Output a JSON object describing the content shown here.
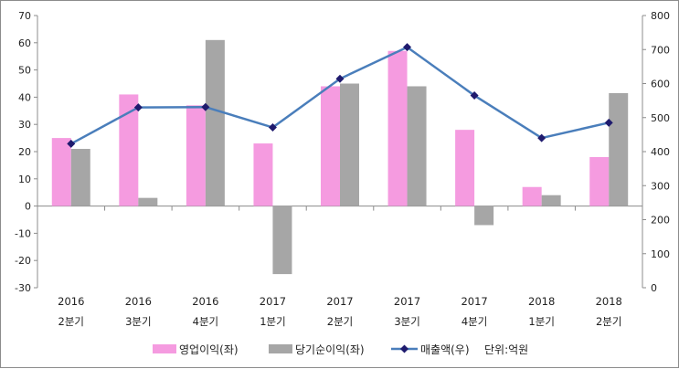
{
  "chart_data": {
    "type": "bar",
    "categories": [
      {
        "year": "2016",
        "quarter": "2분기"
      },
      {
        "year": "2016",
        "quarter": "3분기"
      },
      {
        "year": "2016",
        "quarter": "4분기"
      },
      {
        "year": "2017",
        "quarter": "1분기"
      },
      {
        "year": "2017",
        "quarter": "2분기"
      },
      {
        "year": "2017",
        "quarter": "3분기"
      },
      {
        "year": "2017",
        "quarter": "4분기"
      },
      {
        "year": "2018",
        "quarter": "1분기"
      },
      {
        "year": "2018",
        "quarter": "2분기"
      }
    ],
    "series": [
      {
        "name": "영업이익(좌)",
        "type": "bar",
        "axis": "left",
        "color": "#f59be0",
        "values": [
          25,
          41,
          37,
          23,
          44,
          57,
          28,
          7,
          18
        ]
      },
      {
        "name": "당기순이익(좌)",
        "type": "bar",
        "axis": "left",
        "color": "#a6a6a6",
        "values": [
          21,
          3,
          61,
          -25,
          45,
          44,
          -7,
          4,
          41.5
        ]
      },
      {
        "name": "매출액(우)",
        "type": "line",
        "axis": "right",
        "color": "#4a7ebb",
        "marker_color": "#1f1b6e",
        "values": [
          423,
          530,
          531,
          471,
          614,
          707,
          565,
          440,
          485
        ]
      }
    ],
    "left_axis": {
      "min": -30,
      "max": 70,
      "step": 10,
      "tick_labels": [
        "70",
        "60",
        "50",
        "40",
        "30",
        "20",
        "10",
        "0",
        "-10",
        "-20",
        "-30"
      ]
    },
    "right_axis": {
      "min": 0,
      "max": 800,
      "step": 100,
      "tick_labels": [
        "800",
        "700",
        "600",
        "500",
        "400",
        "300",
        "200",
        "100",
        "0"
      ]
    },
    "unit_label": "단위:억원",
    "legend_position": "bottom",
    "grid": false
  }
}
